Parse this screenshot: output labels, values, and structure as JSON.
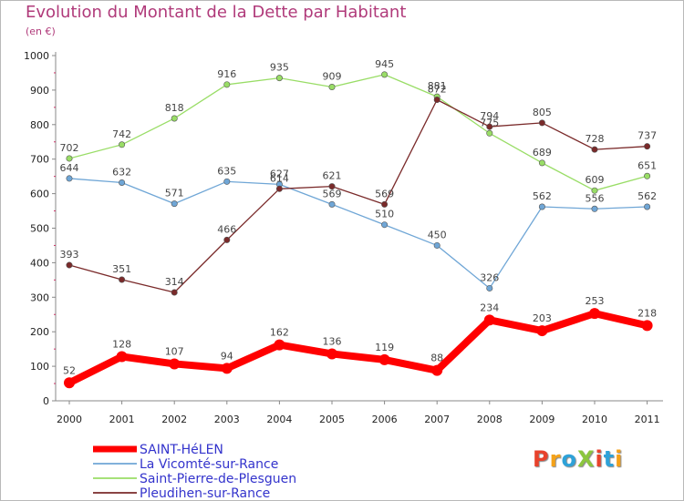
{
  "title": "Evolution du Montant de la Dette par Habitant",
  "unit": "(en €)",
  "logo": {
    "text": "ProXiti",
    "colors": [
      "#e8422c",
      "#f4a21a",
      "#2ea2d8",
      "#8cc63e",
      "#e8422c",
      "#2ea2d8",
      "#f4a21a"
    ]
  },
  "chart_data": {
    "type": "line",
    "x": [
      "2000",
      "2001",
      "2002",
      "2003",
      "2004",
      "2005",
      "2006",
      "2007",
      "2008",
      "2009",
      "2010",
      "2011"
    ],
    "ylim": [
      0,
      1000
    ],
    "yticks": [
      0,
      100,
      200,
      300,
      400,
      500,
      600,
      700,
      800,
      900,
      1000
    ],
    "grid": false,
    "legend": "bottom-left",
    "series": [
      {
        "name": "SAINT-HéLEN",
        "color": "#ff0000",
        "bold": true,
        "values": [
          52,
          128,
          107,
          94,
          162,
          136,
          119,
          88,
          234,
          203,
          253,
          218
        ]
      },
      {
        "name": "La Vicomté-sur-Rance",
        "color": "#6fa6d6",
        "bold": false,
        "values": [
          644,
          632,
          571,
          635,
          627,
          569,
          510,
          450,
          326,
          562,
          556,
          562
        ]
      },
      {
        "name": "Saint-Pierre-de-Plesguen",
        "color": "#99dd66",
        "bold": false,
        "values": [
          702,
          742,
          818,
          916,
          935,
          909,
          945,
          881,
          775,
          689,
          609,
          651
        ]
      },
      {
        "name": "Pleudihen-sur-Rance",
        "color": "#7a2a2a",
        "bold": false,
        "values": [
          393,
          351,
          314,
          466,
          614,
          621,
          569,
          872,
          794,
          805,
          728,
          737
        ]
      }
    ]
  }
}
